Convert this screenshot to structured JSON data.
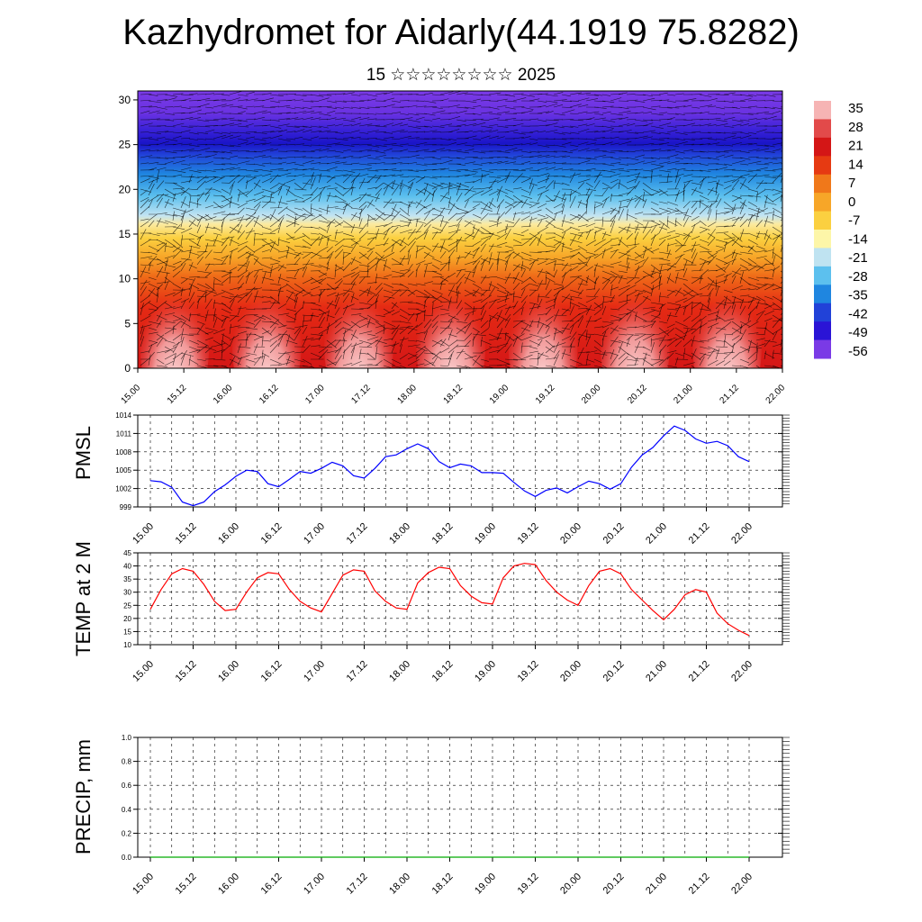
{
  "title": "Kazhydromet for Aidarly(44.1919 75.8282)",
  "subtitle": "15 ☆☆☆☆☆☆☆☆ 2025",
  "time_ticks": [
    "15.00",
    "15.12",
    "16.00",
    "16.12",
    "17.00",
    "17.12",
    "18.00",
    "18.12",
    "19.00",
    "19.12",
    "20.00",
    "20.12",
    "21.00",
    "21.12",
    "22.00"
  ],
  "colorbar": {
    "labels": [
      "35",
      "28",
      "21",
      "14",
      "7",
      "0",
      "-7",
      "-14",
      "-21",
      "-28",
      "-35",
      "-42",
      "-49",
      "-56"
    ],
    "colors": [
      "#f6b4b4",
      "#e24a4a",
      "#d41616",
      "#e63a12",
      "#f0781a",
      "#f7a628",
      "#fbd040",
      "#fdf6a8",
      "#bfe3f1",
      "#5cc0ee",
      "#1f86e0",
      "#2142d8",
      "#2a14d6",
      "#7a3ae6"
    ]
  },
  "chart_data": [
    {
      "type": "heatmap",
      "xlabel": "",
      "ylabel": "",
      "ylim": [
        0,
        31
      ],
      "y_ticks": [
        "0",
        "5",
        "10",
        "15",
        "20",
        "25",
        "30"
      ],
      "description_value": "temperature with wind vectors"
    },
    {
      "type": "line",
      "ylabel": "PMSL",
      "ylim": [
        999,
        1014
      ],
      "y_ticks": [
        "999",
        "1002",
        "1005",
        "1008",
        "1011",
        "1014"
      ],
      "x": [
        0,
        3,
        6,
        9,
        12,
        15,
        18,
        21,
        24,
        27,
        30,
        33,
        36,
        39,
        42,
        45,
        48,
        51,
        54,
        57,
        60,
        63,
        66,
        69,
        72,
        75,
        78,
        81,
        84,
        87,
        90,
        93,
        96,
        99,
        102,
        105,
        108,
        111,
        114,
        117,
        120,
        123,
        126,
        129,
        132,
        135,
        138,
        141,
        144,
        147,
        150,
        153,
        156,
        159,
        162,
        165,
        168
      ],
      "values": [
        1003.3,
        1003.1,
        1002.2,
        999.8,
        999.2,
        999.8,
        1001.5,
        1002.6,
        1004.0,
        1005.0,
        1004.8,
        1002.8,
        1002.3,
        1003.5,
        1004.8,
        1004.5,
        1005.3,
        1006.3,
        1005.7,
        1004.1,
        1003.7,
        1005.3,
        1007.2,
        1007.5,
        1008.5,
        1009.3,
        1008.5,
        1006.4,
        1005.4,
        1006.0,
        1005.7,
        1004.6,
        1004.6,
        1004.5,
        1003.0,
        1001.6,
        1000.7,
        1001.7,
        1002.1,
        1001.3,
        1002.3,
        1003.2,
        1002.8,
        1001.9,
        1002.8,
        1005.5,
        1007.5,
        1008.7,
        1010.6,
        1012.2,
        1011.5,
        1010.1,
        1009.4,
        1009.7,
        1009.0,
        1007.2,
        1006.4
      ],
      "color": "#0000ff"
    },
    {
      "type": "line",
      "ylabel": "TEMP at 2 M",
      "ylim": [
        10,
        45
      ],
      "y_ticks": [
        "10",
        "15",
        "20",
        "25",
        "30",
        "35",
        "40",
        "45"
      ],
      "x": [
        0,
        3,
        6,
        9,
        12,
        15,
        18,
        21,
        24,
        27,
        30,
        33,
        36,
        39,
        42,
        45,
        48,
        51,
        54,
        57,
        60,
        63,
        66,
        69,
        72,
        75,
        78,
        81,
        84,
        87,
        90,
        93,
        96,
        99,
        102,
        105,
        108,
        111,
        114,
        117,
        120,
        123,
        126,
        129,
        132,
        135,
        138,
        141,
        144,
        147,
        150,
        153,
        156,
        159,
        162,
        165,
        168
      ],
      "values": [
        23.5,
        31,
        37,
        39,
        38,
        33,
        26.5,
        23,
        23.5,
        30,
        35.5,
        37.5,
        37,
        31,
        26.5,
        24,
        22.5,
        29.5,
        36.5,
        38.5,
        38,
        30.5,
        26.5,
        24,
        23.5,
        33.5,
        37.5,
        39.5,
        39,
        32.5,
        28.5,
        26,
        25.5,
        35.5,
        40,
        41,
        40.5,
        34.5,
        30,
        27,
        25,
        32.5,
        38,
        39,
        37,
        31,
        27,
        23,
        19.5,
        23.5,
        29,
        31,
        30,
        22,
        18,
        15.5,
        13.5
      ],
      "color": "#ff0000"
    },
    {
      "type": "line",
      "ylabel": "PRECIP, mm",
      "ylim": [
        0,
        1
      ],
      "y_ticks": [
        "0.0",
        "0.2",
        "0.4",
        "0.6",
        "0.8",
        "1.0"
      ],
      "x": [
        0,
        3,
        6,
        9,
        12,
        15,
        18,
        21,
        24,
        27,
        30,
        33,
        36,
        39,
        42,
        45,
        48,
        51,
        54,
        57,
        60,
        63,
        66,
        69,
        72,
        75,
        78,
        81,
        84,
        87,
        90,
        93,
        96,
        99,
        102,
        105,
        108,
        111,
        114,
        117,
        120,
        123,
        126,
        129,
        132,
        135,
        138,
        141,
        144,
        147,
        150,
        153,
        156,
        159,
        162,
        165,
        168
      ],
      "values": [
        0,
        0,
        0,
        0,
        0,
        0,
        0,
        0,
        0,
        0,
        0,
        0,
        0,
        0,
        0,
        0,
        0,
        0,
        0,
        0,
        0,
        0,
        0,
        0,
        0,
        0,
        0,
        0,
        0,
        0,
        0,
        0,
        0,
        0,
        0,
        0,
        0,
        0,
        0,
        0,
        0,
        0,
        0,
        0,
        0,
        0,
        0,
        0,
        0,
        0,
        0,
        0,
        0,
        0,
        0,
        0,
        0
      ],
      "color": "#00aa00"
    }
  ]
}
